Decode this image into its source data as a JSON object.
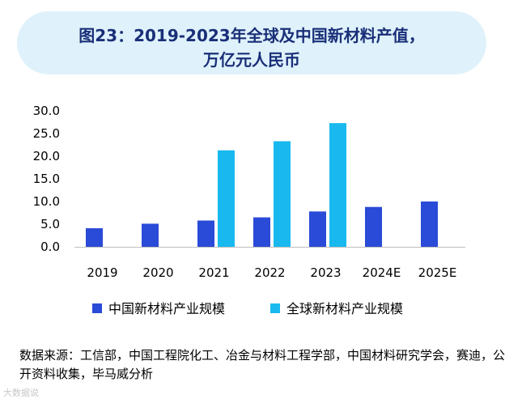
{
  "title": "图23：2019-2023年全球及中国新材料产值，",
  "subtitle": "万亿元人民币",
  "source": "数据来源：工信部，中国工程院化工、冶金与材料工程学部，中国材料研究学会，赛迪，公开资料收集，毕马威分析",
  "watermark": "大数据说",
  "colors": {
    "china": "#2a4bd7",
    "global": "#19b9ef",
    "title_bg": "#dff2fb",
    "title_text": "#1a2f78"
  },
  "chart_data": {
    "type": "bar",
    "title": "图23：2019-2023年全球及中国新材料产值，万亿元人民币",
    "xlabel": "",
    "ylabel": "",
    "categories": [
      "2019",
      "2020",
      "2021",
      "2022",
      "2023",
      "2024E",
      "2025E"
    ],
    "series": [
      {
        "name": "中国新材料产业规模",
        "values": [
          4.1,
          5.1,
          5.8,
          6.5,
          7.8,
          8.8,
          10.0
        ]
      },
      {
        "name": "全球新材料产业规模",
        "values": [
          null,
          null,
          21.3,
          23.3,
          27.3,
          null,
          null
        ]
      }
    ],
    "yticks": [
      "0.0",
      "5.0",
      "10.0",
      "15.0",
      "20.0",
      "25.0",
      "30.0"
    ],
    "ylim": [
      0,
      30
    ],
    "grid": false,
    "legend": "bottom"
  }
}
